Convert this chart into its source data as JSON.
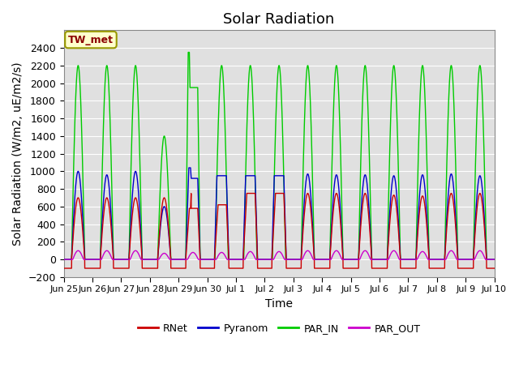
{
  "title": "Solar Radiation",
  "ylabel": "Solar Radiation (W/m2, uE/m2/s)",
  "xlabel": "Time",
  "ylim": [
    -200,
    2600
  ],
  "yticks": [
    -200,
    0,
    200,
    400,
    600,
    800,
    1000,
    1200,
    1400,
    1600,
    1800,
    2000,
    2200,
    2400
  ],
  "annotation": "TW_met",
  "line_colors": {
    "RNet": "#cc0000",
    "Pyranom": "#0000cc",
    "PAR_IN": "#00cc00",
    "PAR_OUT": "#cc00cc"
  },
  "background_color": "#ffffff",
  "plot_bg_color": "#e0e0e0",
  "grid_color": "#ffffff",
  "title_fontsize": 13,
  "label_fontsize": 10,
  "tick_fontsize": 9,
  "tick_labels": [
    "Jun 25",
    "Jun 26",
    "Jun 27",
    "Jun 28",
    "Jun 29",
    "Jun 30",
    "Jul 1",
    "Jul 2",
    "Jul 3",
    "Jul 4",
    "Jul 5",
    "Jul 6",
    "Jul 7",
    "Jul 8",
    "Jul 9",
    "Jul 10"
  ]
}
